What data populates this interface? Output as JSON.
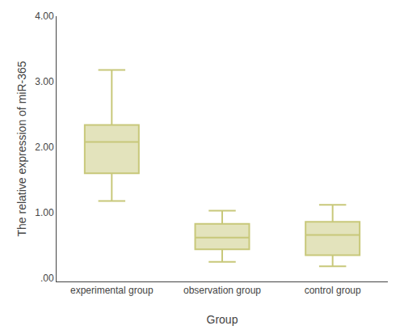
{
  "chart_data": {
    "type": "box",
    "xlabel": "Group",
    "ylabel": "The relative expression of miR-365",
    "categories": [
      "experimental group",
      "observation group",
      "control group"
    ],
    "median": [
      2.08,
      0.62,
      0.66
    ],
    "q1": [
      1.6,
      0.44,
      0.35
    ],
    "q3": [
      2.34,
      0.83,
      0.86
    ],
    "whislo": [
      1.18,
      0.25,
      0.18
    ],
    "whishi": [
      3.18,
      1.03,
      1.12
    ],
    "color": "#c8c87a",
    "ylim": [
      -0.05,
      4.0
    ],
    "yticks": [
      {
        "value": 0.0,
        "label": ".00"
      },
      {
        "value": 1.0,
        "label": "1.00"
      },
      {
        "value": 2.0,
        "label": "2.00"
      },
      {
        "value": 3.0,
        "label": "3.00"
      },
      {
        "value": 4.0,
        "label": "4.00"
      }
    ],
    "grid": false
  }
}
